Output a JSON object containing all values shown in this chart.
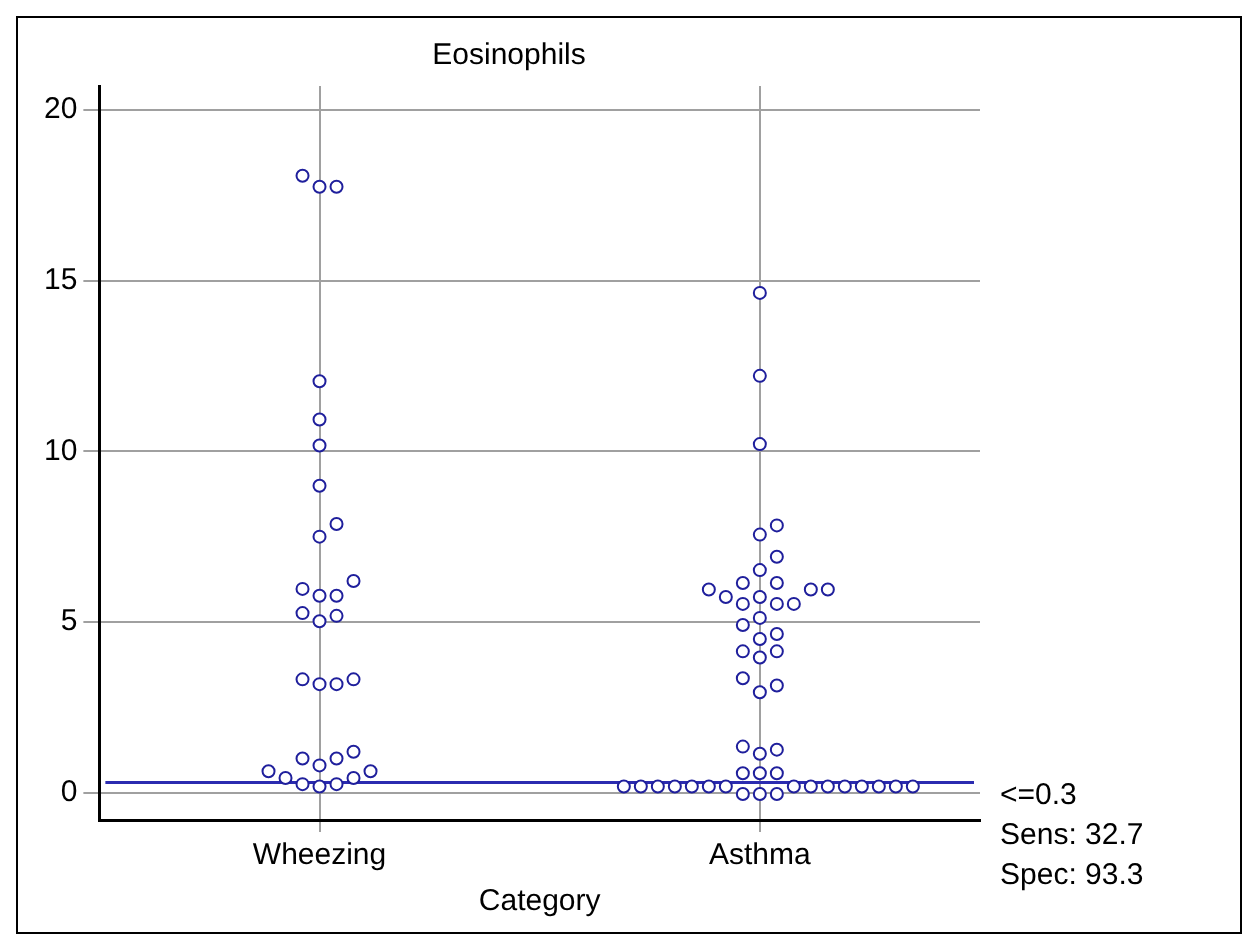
{
  "chart_data": {
    "type": "scatter",
    "title": "Eosinophils",
    "xlabel": "Category",
    "categories": [
      "Wheezing",
      "Asthma"
    ],
    "series": [
      {
        "color": "#1f1f9c",
        "x": [
          "Wheezing",
          "Wheezing",
          "Wheezing",
          "Wheezing",
          "Wheezing",
          "Wheezing",
          "Wheezing",
          "Wheezing",
          "Wheezing",
          "Wheezing",
          "Wheezing",
          "Wheezing",
          "Wheezing",
          "Wheezing",
          "Wheezing",
          "Wheezing",
          "Wheezing",
          "Wheezing",
          "Wheezing",
          "Wheezing",
          "Wheezing",
          "Wheezing",
          "Wheezing",
          "Wheezing",
          "Wheezing",
          "Wheezing",
          "Wheezing",
          "Wheezing",
          "Wheezing",
          "Wheezing",
          "Wheezing"
        ],
        "values": [
          17.75,
          17.75,
          18.07,
          12.05,
          10.93,
          10.17,
          8.99,
          7.87,
          7.5,
          6.2,
          5.97,
          5.77,
          5.77,
          5.26,
          5.18,
          5.02,
          3.18,
          3.18,
          3.32,
          3.32,
          1.2,
          1.0,
          1.0,
          0.8,
          0.63,
          0.63,
          0.43,
          0.43,
          0.18,
          0.25,
          0.25
        ]
      },
      {
        "color": "#1f1f9c",
        "x": [
          "Asthma",
          "Asthma",
          "Asthma",
          "Asthma",
          "Asthma",
          "Asthma",
          "Asthma",
          "Asthma",
          "Asthma",
          "Asthma",
          "Asthma",
          "Asthma",
          "Asthma",
          "Asthma",
          "Asthma",
          "Asthma",
          "Asthma",
          "Asthma",
          "Asthma",
          "Asthma",
          "Asthma",
          "Asthma",
          "Asthma",
          "Asthma",
          "Asthma",
          "Asthma",
          "Asthma",
          "Asthma",
          "Asthma",
          "Asthma",
          "Asthma",
          "Asthma",
          "Asthma",
          "Asthma",
          "Asthma",
          "Asthma",
          "Asthma",
          "Asthma",
          "Asthma",
          "Asthma",
          "Asthma",
          "Asthma",
          "Asthma",
          "Asthma",
          "Asthma",
          "Asthma",
          "Asthma",
          "Asthma",
          "Asthma",
          "Asthma",
          "Asthma"
        ],
        "values": [
          14.64,
          12.21,
          10.21,
          7.83,
          7.56,
          6.91,
          6.52,
          6.14,
          6.14,
          5.95,
          5.95,
          5.95,
          5.73,
          5.73,
          5.53,
          5.53,
          5.53,
          5.12,
          4.91,
          4.65,
          4.5,
          4.14,
          4.14,
          3.96,
          3.35,
          3.14,
          2.94,
          1.35,
          1.26,
          1.14,
          0.57,
          0.57,
          0.57,
          0.18,
          0.18,
          0.18,
          0.18,
          0.18,
          0.18,
          0.18,
          0.18,
          0.18,
          0.18,
          0.18,
          0.18,
          0.18,
          0.18,
          0.18,
          -0.04,
          -0.04,
          -0.04
        ]
      }
    ],
    "ylim": [
      -0.8,
      20.7
    ],
    "yticks": [
      0,
      5,
      10,
      15,
      20
    ],
    "grid": true,
    "marker": "circle",
    "ref_lines": [
      {
        "axis": "y",
        "value": 0.3,
        "label": "<=0.3",
        "color": "#2b2bb0"
      }
    ],
    "annotations": [
      "Sens: 32.7",
      "Spec: 93.3"
    ]
  }
}
